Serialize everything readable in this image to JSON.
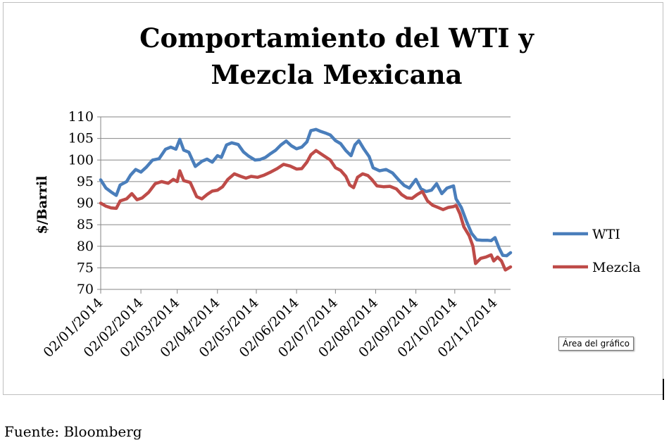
{
  "chart_data": {
    "type": "line",
    "title_lines": [
      "Comportamiento del WTI y",
      "Mezcla Mexicana"
    ],
    "ylabel": "$/Barril",
    "ylim": [
      70,
      110
    ],
    "yticks": [
      "70",
      "75",
      "80",
      "85",
      "90",
      "95",
      "100",
      "105",
      "110"
    ],
    "xaxis_start": "2014-01-02",
    "xaxis_end": "2014-11-14",
    "xticks": [
      {
        "date": "2014-01-02",
        "label": "02/01/2014"
      },
      {
        "date": "2014-02-02",
        "label": "02/02/2014"
      },
      {
        "date": "2014-03-02",
        "label": "02/03/2014"
      },
      {
        "date": "2014-04-02",
        "label": "02/04/2014"
      },
      {
        "date": "2014-05-02",
        "label": "02/05/2014"
      },
      {
        "date": "2014-06-02",
        "label": "02/06/2014"
      },
      {
        "date": "2014-07-02",
        "label": "02/07/2014"
      },
      {
        "date": "2014-08-02",
        "label": "02/08/2014"
      },
      {
        "date": "2014-09-02",
        "label": "02/09/2014"
      },
      {
        "date": "2014-10-02",
        "label": "02/10/2014"
      },
      {
        "date": "2014-11-02",
        "label": "02/11/2014"
      }
    ],
    "grid": true,
    "legend_position": "right",
    "series": [
      {
        "name": "WTI",
        "color": "#4a7ebb",
        "points": [
          [
            "2014-01-02",
            95.4
          ],
          [
            "2014-01-06",
            93.5
          ],
          [
            "2014-01-10",
            92.6
          ],
          [
            "2014-01-14",
            91.8
          ],
          [
            "2014-01-17",
            94.2
          ],
          [
            "2014-01-22",
            95.0
          ],
          [
            "2014-01-25",
            96.5
          ],
          [
            "2014-01-29",
            97.8
          ],
          [
            "2014-02-02",
            97.2
          ],
          [
            "2014-02-06",
            98.3
          ],
          [
            "2014-02-11",
            100.0
          ],
          [
            "2014-02-16",
            100.3
          ],
          [
            "2014-02-21",
            102.5
          ],
          [
            "2014-02-25",
            103.0
          ],
          [
            "2014-03-01",
            102.5
          ],
          [
            "2014-03-04",
            104.8
          ],
          [
            "2014-03-07",
            102.3
          ],
          [
            "2014-03-11",
            101.8
          ],
          [
            "2014-03-16",
            98.5
          ],
          [
            "2014-03-21",
            99.7
          ],
          [
            "2014-03-25",
            100.2
          ],
          [
            "2014-03-29",
            99.5
          ],
          [
            "2014-04-02",
            101.0
          ],
          [
            "2014-04-05",
            100.6
          ],
          [
            "2014-04-09",
            103.5
          ],
          [
            "2014-04-13",
            104.0
          ],
          [
            "2014-04-18",
            103.6
          ],
          [
            "2014-04-22",
            101.9
          ],
          [
            "2014-04-26",
            100.9
          ],
          [
            "2014-05-01",
            100.0
          ],
          [
            "2014-05-05",
            100.1
          ],
          [
            "2014-05-09",
            100.6
          ],
          [
            "2014-05-13",
            101.5
          ],
          [
            "2014-05-17",
            102.3
          ],
          [
            "2014-05-21",
            103.5
          ],
          [
            "2014-05-25",
            104.4
          ],
          [
            "2014-05-29",
            103.3
          ],
          [
            "2014-06-02",
            102.6
          ],
          [
            "2014-06-06",
            103.0
          ],
          [
            "2014-06-10",
            104.2
          ],
          [
            "2014-06-13",
            106.8
          ],
          [
            "2014-06-17",
            107.1
          ],
          [
            "2014-06-20",
            106.7
          ],
          [
            "2014-06-24",
            106.3
          ],
          [
            "2014-06-28",
            105.8
          ],
          [
            "2014-07-02",
            104.5
          ],
          [
            "2014-07-06",
            103.8
          ],
          [
            "2014-07-10",
            102.2
          ],
          [
            "2014-07-14",
            101.0
          ],
          [
            "2014-07-17",
            103.5
          ],
          [
            "2014-07-20",
            104.5
          ],
          [
            "2014-07-24",
            102.5
          ],
          [
            "2014-07-28",
            100.8
          ],
          [
            "2014-07-31",
            98.2
          ],
          [
            "2014-08-05",
            97.5
          ],
          [
            "2014-08-10",
            97.8
          ],
          [
            "2014-08-15",
            97.0
          ],
          [
            "2014-08-20",
            95.3
          ],
          [
            "2014-08-24",
            94.1
          ],
          [
            "2014-08-28",
            93.5
          ],
          [
            "2014-09-02",
            95.5
          ],
          [
            "2014-09-06",
            93.3
          ],
          [
            "2014-09-10",
            92.7
          ],
          [
            "2014-09-14",
            93.0
          ],
          [
            "2014-09-18",
            94.5
          ],
          [
            "2014-09-22",
            92.2
          ],
          [
            "2014-09-26",
            93.5
          ],
          [
            "2014-10-01",
            94.0
          ],
          [
            "2014-10-03",
            91.0
          ],
          [
            "2014-10-07",
            89.0
          ],
          [
            "2014-10-11",
            85.8
          ],
          [
            "2014-10-15",
            83.0
          ],
          [
            "2014-10-19",
            81.5
          ],
          [
            "2014-10-23",
            81.4
          ],
          [
            "2014-10-27",
            81.4
          ],
          [
            "2014-10-30",
            81.3
          ],
          [
            "2014-11-02",
            82.0
          ],
          [
            "2014-11-05",
            79.7
          ],
          [
            "2014-11-08",
            77.9
          ],
          [
            "2014-11-11",
            77.8
          ],
          [
            "2014-11-14",
            78.5
          ]
        ]
      },
      {
        "name": "Mezcla",
        "color": "#be4b48",
        "points": [
          [
            "2014-01-02",
            90.0
          ],
          [
            "2014-01-06",
            89.3
          ],
          [
            "2014-01-10",
            88.9
          ],
          [
            "2014-01-14",
            88.8
          ],
          [
            "2014-01-17",
            90.5
          ],
          [
            "2014-01-22",
            91.0
          ],
          [
            "2014-01-26",
            92.2
          ],
          [
            "2014-01-30",
            90.8
          ],
          [
            "2014-02-03",
            91.2
          ],
          [
            "2014-02-08",
            92.5
          ],
          [
            "2014-02-13",
            94.5
          ],
          [
            "2014-02-18",
            95.0
          ],
          [
            "2014-02-23",
            94.6
          ],
          [
            "2014-02-27",
            95.5
          ],
          [
            "2014-03-02",
            95.0
          ],
          [
            "2014-03-04",
            97.5
          ],
          [
            "2014-03-07",
            95.2
          ],
          [
            "2014-03-12",
            94.8
          ],
          [
            "2014-03-17",
            91.5
          ],
          [
            "2014-03-21",
            91.0
          ],
          [
            "2014-03-25",
            92.0
          ],
          [
            "2014-03-29",
            92.8
          ],
          [
            "2014-04-02",
            93.0
          ],
          [
            "2014-04-06",
            93.8
          ],
          [
            "2014-04-10",
            95.5
          ],
          [
            "2014-04-15",
            96.8
          ],
          [
            "2014-04-20",
            96.2
          ],
          [
            "2014-04-24",
            95.8
          ],
          [
            "2014-04-28",
            96.2
          ],
          [
            "2014-05-03",
            96.0
          ],
          [
            "2014-05-08",
            96.5
          ],
          [
            "2014-05-13",
            97.2
          ],
          [
            "2014-05-18",
            98.0
          ],
          [
            "2014-05-23",
            99.0
          ],
          [
            "2014-05-28",
            98.6
          ],
          [
            "2014-06-02",
            97.9
          ],
          [
            "2014-06-06",
            98.0
          ],
          [
            "2014-06-10",
            99.5
          ],
          [
            "2014-06-13",
            101.2
          ],
          [
            "2014-06-17",
            102.2
          ],
          [
            "2014-06-20",
            101.6
          ],
          [
            "2014-06-24",
            100.8
          ],
          [
            "2014-06-28",
            100.0
          ],
          [
            "2014-07-02",
            98.2
          ],
          [
            "2014-07-06",
            97.6
          ],
          [
            "2014-07-10",
            96.2
          ],
          [
            "2014-07-13",
            94.2
          ],
          [
            "2014-07-16",
            93.6
          ],
          [
            "2014-07-19",
            96.0
          ],
          [
            "2014-07-23",
            96.8
          ],
          [
            "2014-07-27",
            96.4
          ],
          [
            "2014-07-30",
            95.5
          ],
          [
            "2014-08-03",
            94.0
          ],
          [
            "2014-08-08",
            93.8
          ],
          [
            "2014-08-13",
            93.9
          ],
          [
            "2014-08-18",
            93.3
          ],
          [
            "2014-08-22",
            92.0
          ],
          [
            "2014-08-26",
            91.2
          ],
          [
            "2014-08-30",
            91.1
          ],
          [
            "2014-09-03",
            92.0
          ],
          [
            "2014-09-07",
            92.7
          ],
          [
            "2014-09-11",
            90.5
          ],
          [
            "2014-09-15",
            89.5
          ],
          [
            "2014-09-19",
            89.0
          ],
          [
            "2014-09-23",
            88.5
          ],
          [
            "2014-09-27",
            89.0
          ],
          [
            "2014-10-01",
            89.2
          ],
          [
            "2014-10-03",
            89.5
          ],
          [
            "2014-10-06",
            87.5
          ],
          [
            "2014-10-09",
            84.5
          ],
          [
            "2014-10-13",
            82.5
          ],
          [
            "2014-10-16",
            80.0
          ],
          [
            "2014-10-18",
            76.0
          ],
          [
            "2014-10-22",
            77.2
          ],
          [
            "2014-10-26",
            77.5
          ],
          [
            "2014-10-30",
            78.0
          ],
          [
            "2014-11-01",
            76.6
          ],
          [
            "2014-11-04",
            77.5
          ],
          [
            "2014-11-07",
            76.6
          ],
          [
            "2014-11-10",
            74.5
          ],
          [
            "2014-11-14",
            75.2
          ]
        ]
      }
    ]
  },
  "tooltip": "Área del gráfico",
  "source": "Fuente: Bloomberg"
}
